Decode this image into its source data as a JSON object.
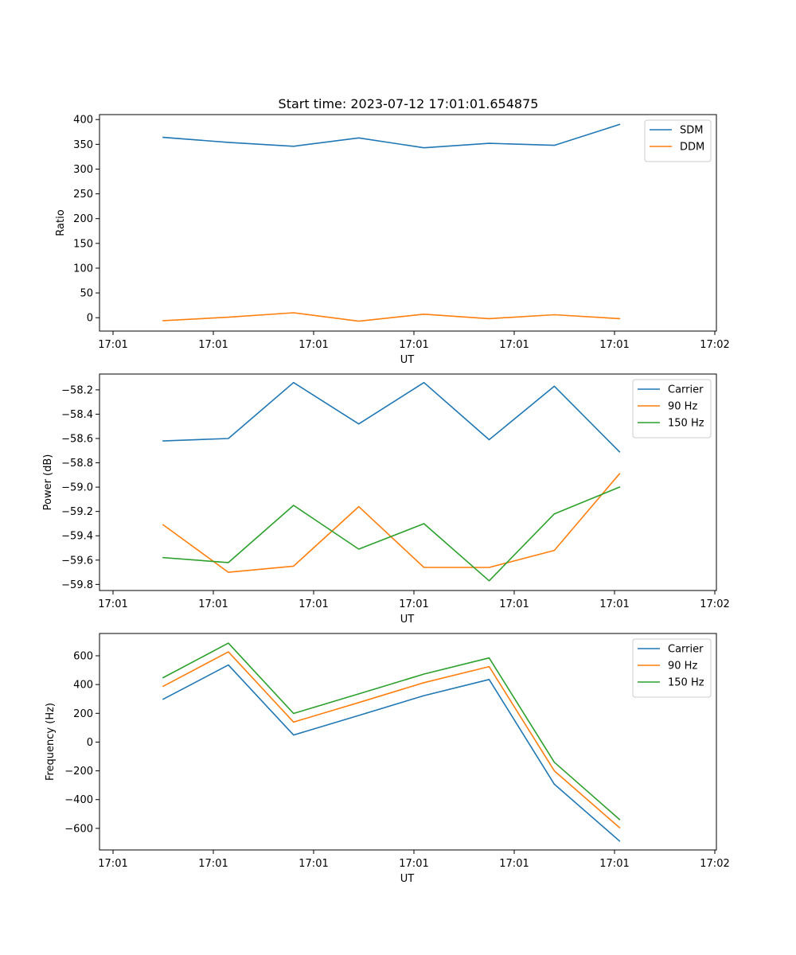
{
  "figure_title": "Start time: 2023-07-12 17:01:01.654875",
  "chart_data": [
    {
      "type": "line",
      "title": "Start time: 2023-07-12 17:01:01.654875",
      "xlabel": "UT",
      "ylabel": "Ratio",
      "x_tick_labels": [
        "17:01",
        "17:01",
        "17:01",
        "17:01",
        "17:01",
        "17:01",
        "17:02"
      ],
      "y_ticks": [
        0,
        50,
        100,
        150,
        200,
        250,
        300,
        350,
        400
      ],
      "y_tick_labels": [
        "0",
        "50",
        "100",
        "150",
        "200",
        "250",
        "300",
        "350",
        "400"
      ],
      "xlim": [
        0,
        6
      ],
      "ylim": [
        -27,
        410
      ],
      "x": [
        0.5,
        1.15,
        1.8,
        2.45,
        3.1,
        3.75,
        4.4,
        5.05
      ],
      "legend_position": "top-right",
      "series": [
        {
          "name": "SDM",
          "color": "#1f77b4",
          "values": [
            364,
            354,
            346,
            363,
            343,
            352,
            348,
            390
          ]
        },
        {
          "name": "DDM",
          "color": "#ff7f0e",
          "values": [
            -6,
            1,
            10,
            -7,
            7,
            -2,
            6,
            -2
          ]
        }
      ]
    },
    {
      "type": "line",
      "title": "",
      "xlabel": "UT",
      "ylabel": "Power (dB)",
      "x_tick_labels": [
        "17:01",
        "17:01",
        "17:01",
        "17:01",
        "17:01",
        "17:01",
        "17:02"
      ],
      "y_ticks": [
        -59.8,
        -59.6,
        -59.4,
        -59.2,
        -59.0,
        -58.8,
        -58.6,
        -58.4,
        -58.2
      ],
      "y_tick_labels": [
        "−59.8",
        "−59.6",
        "−59.4",
        "−59.2",
        "−59.0",
        "−58.8",
        "−58.6",
        "−58.4",
        "−58.2"
      ],
      "xlim": [
        0,
        6
      ],
      "ylim": [
        -59.85,
        -58.07
      ],
      "x": [
        0.5,
        1.15,
        1.8,
        2.45,
        3.1,
        3.75,
        4.4,
        5.05
      ],
      "legend_position": "top-right",
      "series": [
        {
          "name": "Carrier",
          "color": "#1f77b4",
          "values": [
            -58.62,
            -58.6,
            -58.14,
            -58.48,
            -58.14,
            -58.61,
            -58.17,
            -58.71
          ]
        },
        {
          "name": "90 Hz",
          "color": "#ff7f0e",
          "values": [
            -59.31,
            -59.7,
            -59.65,
            -59.16,
            -59.66,
            -59.66,
            -59.52,
            -58.89
          ]
        },
        {
          "name": "150 Hz",
          "color": "#2ca02c",
          "values": [
            -59.58,
            -59.62,
            -59.15,
            -59.51,
            -59.3,
            -59.77,
            -59.22,
            -59.0
          ]
        }
      ]
    },
    {
      "type": "line",
      "title": "",
      "xlabel": "UT",
      "ylabel": "Frequency (Hz)",
      "x_tick_labels": [
        "17:01",
        "17:01",
        "17:01",
        "17:01",
        "17:01",
        "17:01",
        "17:02"
      ],
      "y_ticks": [
        -600,
        -400,
        -200,
        0,
        200,
        400,
        600
      ],
      "y_tick_labels": [
        "−600",
        "−400",
        "−200",
        "0",
        "200",
        "400",
        "600"
      ],
      "xlim": [
        0,
        6
      ],
      "ylim": [
        -750,
        755
      ],
      "x": [
        0.5,
        1.15,
        1.8,
        2.45,
        3.1,
        3.75,
        4.4,
        5.05
      ],
      "legend_position": "top-right",
      "series": [
        {
          "name": "Carrier",
          "color": "#1f77b4",
          "values": [
            298,
            536,
            49,
            185,
            323,
            435,
            -293,
            -688
          ]
        },
        {
          "name": "90 Hz",
          "color": "#ff7f0e",
          "values": [
            388,
            627,
            139,
            275,
            413,
            525,
            -200,
            -595
          ]
        },
        {
          "name": "150 Hz",
          "color": "#2ca02c",
          "values": [
            448,
            688,
            199,
            335,
            473,
            585,
            -140,
            -538
          ]
        }
      ]
    }
  ]
}
